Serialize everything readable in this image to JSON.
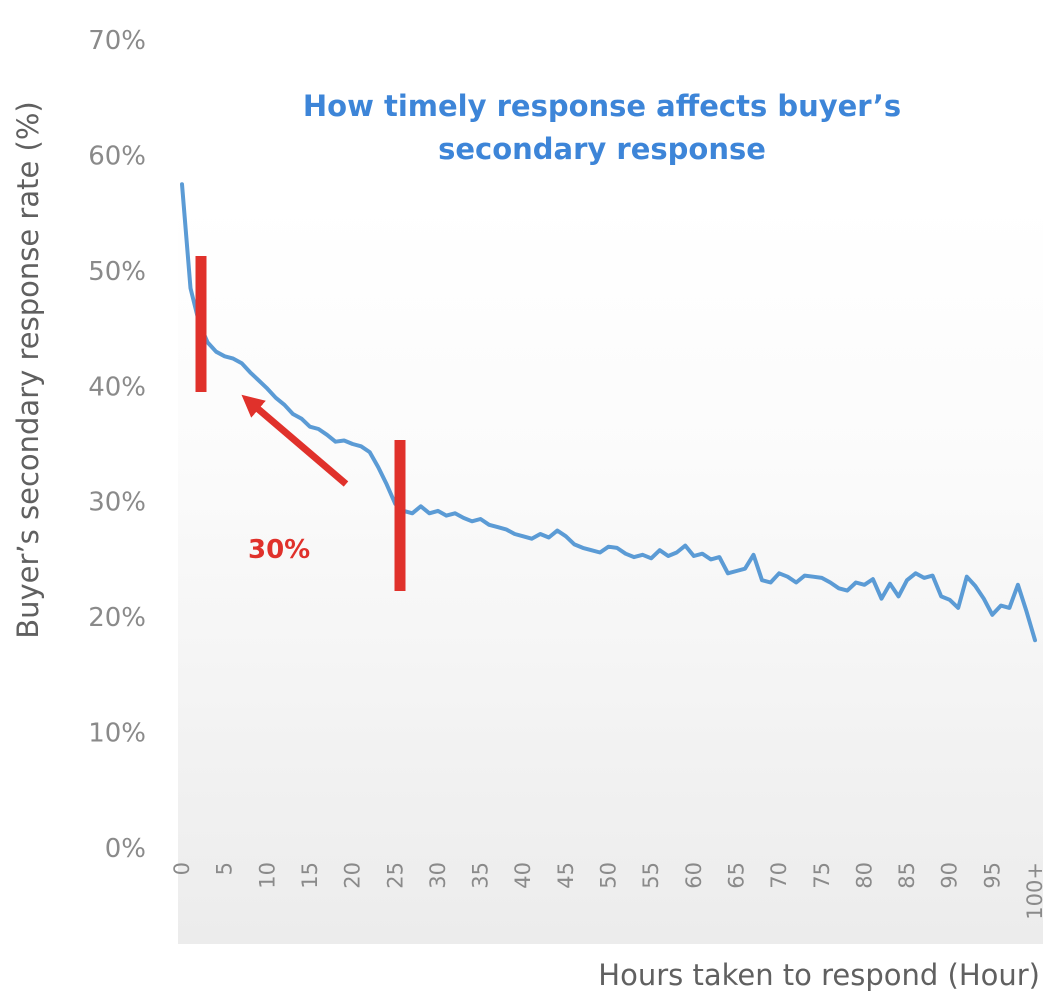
{
  "chart_data": {
    "type": "line",
    "title_lines": [
      "How timely response affects buyer’s",
      "secondary response"
    ],
    "xlabel": "Hours taken to respond (Hour)",
    "ylabel": "Buyer’s secondary response rate  (%)",
    "ylim": [
      0,
      70
    ],
    "xlim": [
      0,
      100
    ],
    "y_ticks": [
      "0%",
      "10%",
      "20%",
      "30%",
      "40%",
      "50%",
      "60%",
      "70%"
    ],
    "x_ticks": [
      "0",
      "5",
      "10",
      "15",
      "20",
      "25",
      "30",
      "35",
      "40",
      "45",
      "50",
      "55",
      "60",
      "65",
      "70",
      "75",
      "80",
      "85",
      "90",
      "95",
      "100+"
    ],
    "grid": false,
    "series": [
      {
        "color": "#5b9bd5",
        "x": [
          0,
          1,
          2,
          3,
          4,
          5,
          6,
          7,
          8,
          9,
          10,
          11,
          12,
          13,
          14,
          15,
          16,
          17,
          18,
          19,
          20,
          21,
          22,
          23,
          24,
          25,
          26,
          27,
          28,
          29,
          30,
          31,
          32,
          33,
          34,
          35,
          36,
          37,
          38,
          39,
          40,
          41,
          42,
          43,
          44,
          45,
          46,
          47,
          48,
          49,
          50,
          51,
          52,
          53,
          54,
          55,
          56,
          57,
          58,
          59,
          60,
          61,
          62,
          63,
          64,
          65,
          66,
          67,
          68,
          69,
          70,
          71,
          72,
          73,
          74,
          75,
          76,
          77,
          78,
          79,
          80,
          81,
          82,
          83,
          84,
          85,
          86,
          87,
          88,
          89,
          90,
          91,
          92,
          93,
          94,
          95,
          96,
          97,
          98,
          99,
          100
        ],
        "y": [
          57.5,
          48.5,
          45.5,
          43.8,
          43.0,
          42.6,
          42.4,
          42.0,
          41.2,
          40.5,
          39.8,
          39.0,
          38.4,
          37.6,
          37.2,
          36.5,
          36.3,
          35.8,
          35.2,
          35.3,
          35.0,
          34.8,
          34.3,
          33.0,
          31.5,
          29.8,
          29.2,
          29.0,
          29.6,
          29.0,
          29.2,
          28.8,
          29.0,
          28.6,
          28.3,
          28.5,
          28.0,
          27.8,
          27.6,
          27.2,
          27.0,
          26.8,
          27.2,
          26.9,
          27.5,
          27.0,
          26.3,
          26.0,
          25.8,
          25.6,
          26.1,
          26.0,
          25.5,
          25.2,
          25.4,
          25.1,
          25.8,
          25.3,
          25.6,
          26.2,
          25.3,
          25.5,
          25.0,
          25.2,
          23.8,
          24.0,
          24.2,
          25.4,
          23.2,
          23.0,
          23.8,
          23.5,
          23.0,
          23.6,
          23.5,
          23.4,
          23.0,
          22.5,
          22.3,
          23.0,
          22.8,
          23.3,
          21.6,
          22.9,
          21.8,
          23.2,
          23.8,
          23.4,
          23.6,
          21.8,
          21.5,
          20.8,
          23.5,
          22.7,
          21.6,
          20.2,
          21.0,
          20.8,
          22.8,
          20.5,
          18.0
        ]
      }
    ],
    "annotations": {
      "label": "30%",
      "arrow_color": "#e0312b",
      "marker_x": [
        2.5,
        25.5
      ]
    }
  }
}
